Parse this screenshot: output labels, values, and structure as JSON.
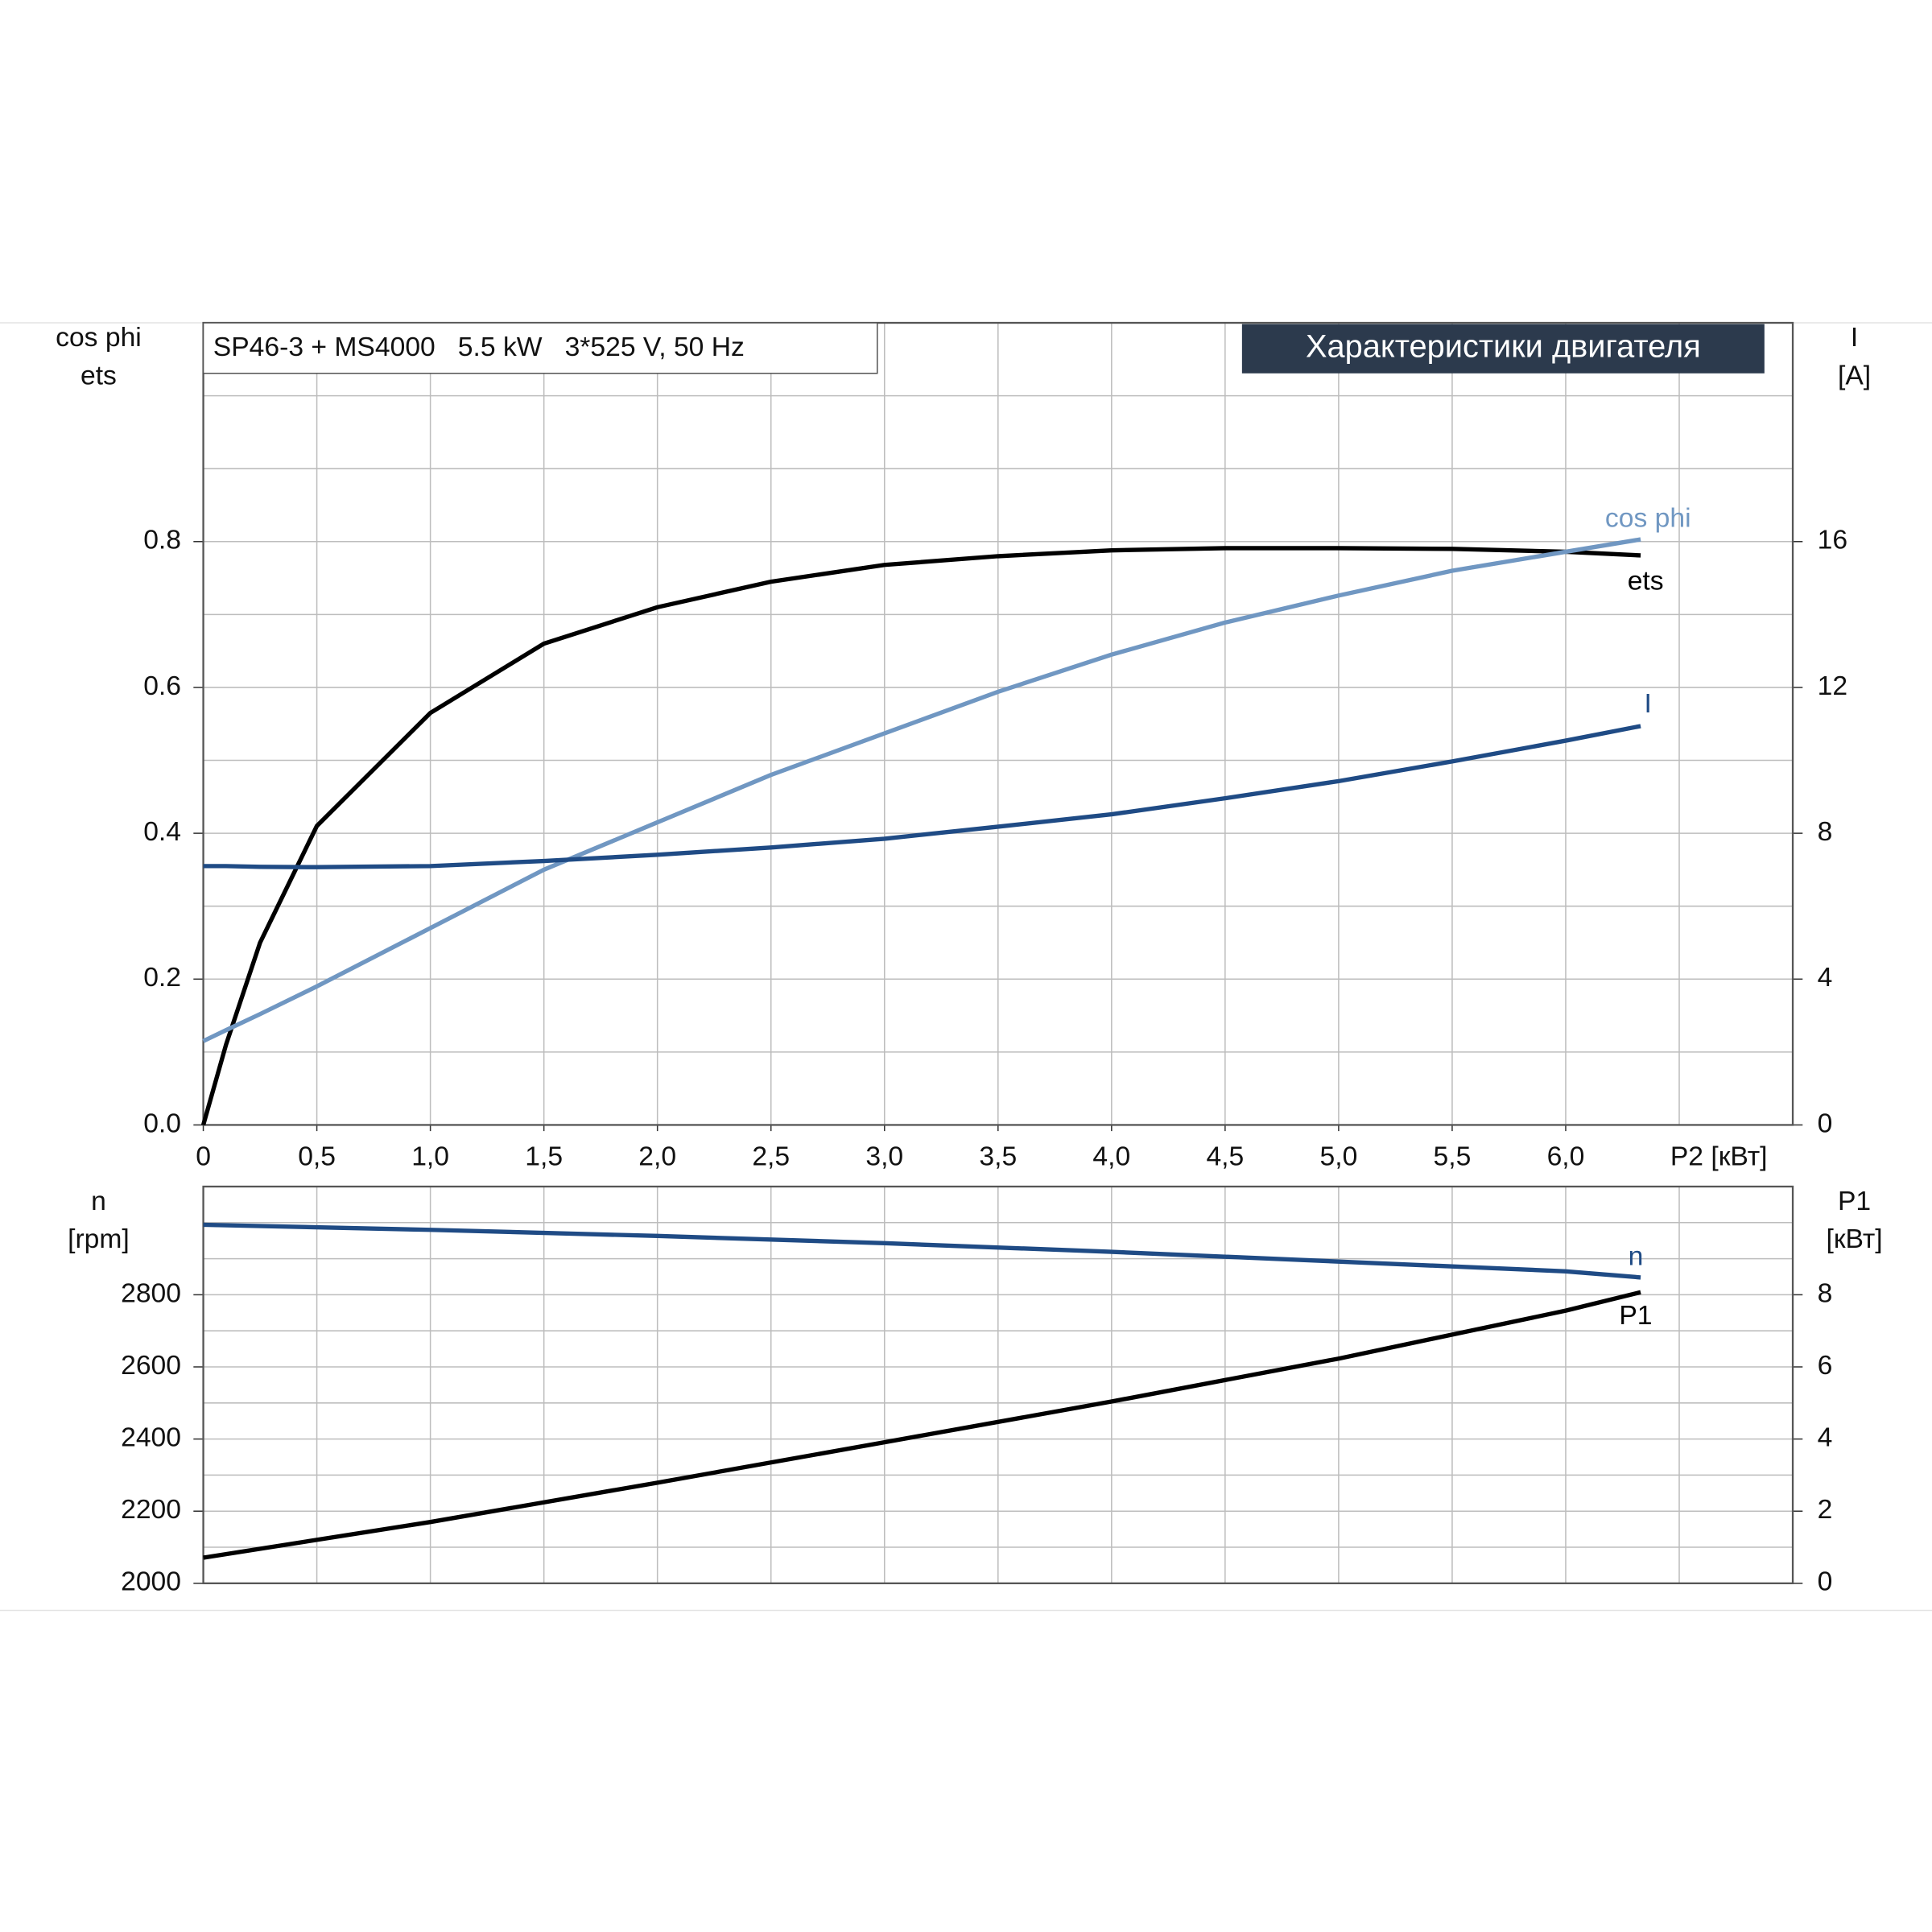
{
  "chart_data": [
    {
      "type": "line",
      "title": "Характеристики двигателя",
      "subtitle": "SP46-3 + MS4000   5.5 kW   3*525 V, 50 Hz",
      "ylabel": [
        "cos phi",
        "ets"
      ],
      "y2label": [
        "I",
        "[A]"
      ],
      "xlabel": "P2 [кВт]",
      "x": [
        0,
        0.1,
        0.25,
        0.5,
        1,
        1.5,
        2,
        2.5,
        3,
        3.5,
        4,
        4.5,
        5,
        5.5,
        6,
        6.33
      ],
      "xlim": [
        0,
        7
      ],
      "xticks": [
        0,
        {
          "value": 0.5,
          "label": "0,5"
        },
        {
          "value": 1,
          "label": "1,0"
        },
        {
          "value": 1.5,
          "label": "1,5"
        },
        {
          "value": 2,
          "label": "2,0"
        },
        {
          "value": 2.5,
          "label": "2,5"
        },
        {
          "value": 3,
          "label": "3,0"
        },
        {
          "value": 3.5,
          "label": "3,5"
        },
        {
          "value": 4,
          "label": "4,0"
        },
        {
          "value": 4.5,
          "label": "4,5"
        },
        {
          "value": 5,
          "label": "5,0"
        },
        {
          "value": 5.5,
          "label": "5,5"
        },
        {
          "value": 6,
          "label": "6,0"
        }
      ],
      "ylim": [
        0,
        1.1
      ],
      "yticks": [
        {
          "value": 0,
          "label": "0.0"
        },
        0.2,
        0.4,
        0.6,
        0.8
      ],
      "y2lim": [
        0,
        22
      ],
      "y2ticks": [
        0,
        4,
        8,
        12,
        16
      ],
      "grid": true,
      "series": [
        {
          "name": "ets",
          "color": "#000000",
          "values": [
            0,
            0.11,
            0.25,
            0.41,
            0.565,
            0.66,
            0.71,
            0.745,
            0.768,
            0.78,
            0.788,
            0.791,
            0.791,
            0.79,
            0.786,
            0.781
          ]
        },
        {
          "name": "cos phi",
          "color": "#7097c2",
          "values": [
            0.115,
            0.13,
            0.152,
            0.19,
            0.27,
            0.35,
            0.415,
            0.48,
            0.537,
            0.594,
            0.645,
            0.689,
            0.726,
            0.76,
            0.786,
            0.803
          ]
        },
        {
          "name": "I",
          "color": "#1f4b85",
          "axis": "y2",
          "values": [
            7.1,
            7.1,
            7.08,
            7.07,
            7.1,
            7.24,
            7.41,
            7.61,
            7.85,
            8.18,
            8.52,
            8.96,
            9.43,
            9.97,
            10.54,
            10.94
          ]
        }
      ]
    },
    {
      "type": "line",
      "ylabel": [
        "n",
        "[rpm]"
      ],
      "y2label": [
        "P1",
        "[кВт]"
      ],
      "x": [
        0,
        1,
        2,
        3,
        4,
        5,
        6,
        6.33
      ],
      "xlim": [
        0,
        7
      ],
      "ylim": [
        2000,
        3100
      ],
      "yticks": [
        2000,
        2200,
        2400,
        2600,
        2800
      ],
      "y2lim": [
        0,
        11
      ],
      "y2ticks": [
        0,
        2,
        4,
        6,
        8
      ],
      "grid": true,
      "series": [
        {
          "name": "n",
          "color": "#1f4b85",
          "values": [
            2994,
            2980,
            2963,
            2943,
            2919,
            2892,
            2865,
            2848
          ]
        },
        {
          "name": "P1",
          "color": "#000000",
          "axis": "y2",
          "values": [
            0.71,
            1.7,
            2.79,
            3.91,
            5.04,
            6.23,
            7.56,
            8.07
          ]
        }
      ]
    }
  ]
}
